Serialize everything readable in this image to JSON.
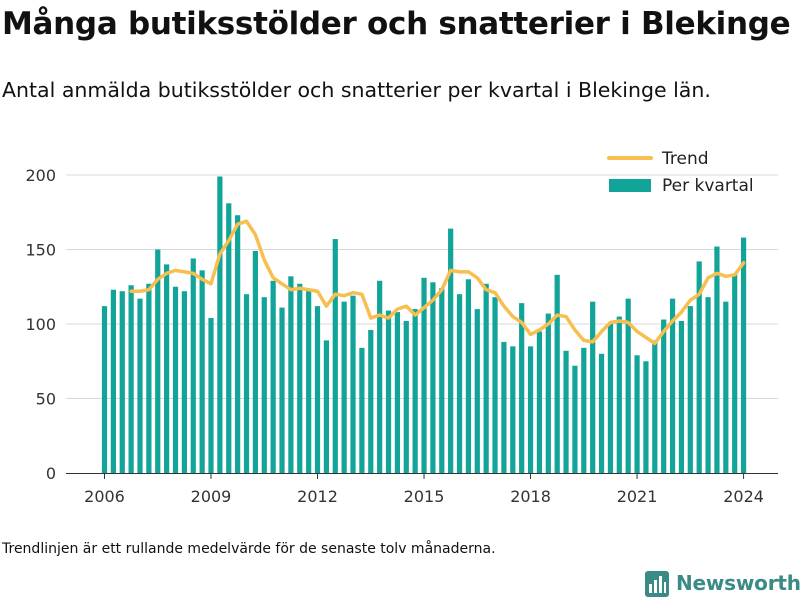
{
  "header": {
    "title": "Många butiksstölder och snatterier i Blekinge",
    "subtitle": "Antal anmälda butiksstölder och snatterier per kvartal i Blekinge län."
  },
  "footer": {
    "note": "Trendlinjen är ett rullande medelvärde för de senaste tolv månaderna.",
    "brand": "Newsworthy"
  },
  "colors": {
    "bar": "#12a399",
    "trend": "#f6bf4f",
    "grid": "#d9d9d9",
    "text": "#333333",
    "brand": "#3a8b86"
  },
  "chart_data": {
    "type": "bar",
    "x_unit": "quarter",
    "x_start": "2006 Q1",
    "x_ticks": [
      "2006",
      "2009",
      "2012",
      "2015",
      "2018",
      "2021",
      "2024"
    ],
    "y_ticks": [
      0,
      50,
      100,
      150,
      200
    ],
    "ylim": [
      0,
      200
    ],
    "legend_position": "top-right",
    "grid": true,
    "series": [
      {
        "name": "Per kvartal",
        "kind": "bar",
        "values": [
          112,
          123,
          122,
          126,
          117,
          127,
          150,
          140,
          125,
          122,
          144,
          136,
          104,
          199,
          181,
          173,
          120,
          149,
          118,
          129,
          111,
          132,
          127,
          123,
          112,
          89,
          157,
          115,
          119,
          84,
          96,
          129,
          109,
          108,
          102,
          110,
          131,
          128,
          124,
          164,
          120,
          130,
          110,
          127,
          118,
          88,
          85,
          114,
          85,
          95,
          107,
          133,
          82,
          72,
          84,
          115,
          80,
          100,
          105,
          117,
          79,
          75,
          89,
          103,
          117,
          102,
          112,
          142,
          118,
          152,
          115,
          133,
          158
        ]
      },
      {
        "name": "Trend",
        "kind": "line",
        "values": [
          null,
          null,
          null,
          122,
          122,
          123,
          130,
          134,
          136,
          135,
          134,
          130,
          127,
          147,
          156,
          167,
          169,
          160,
          143,
          131,
          127,
          123,
          124,
          123,
          122,
          112,
          120,
          119,
          121,
          120,
          104,
          106,
          104,
          110,
          112,
          106,
          111,
          116,
          123,
          136,
          135,
          135,
          131,
          123,
          121,
          112,
          105,
          101,
          93,
          96,
          100,
          106,
          105,
          96,
          89,
          88,
          95,
          101,
          102,
          101,
          95,
          91,
          87,
          95,
          102,
          108,
          116,
          120,
          131,
          134,
          132,
          133,
          141
        ]
      }
    ]
  }
}
